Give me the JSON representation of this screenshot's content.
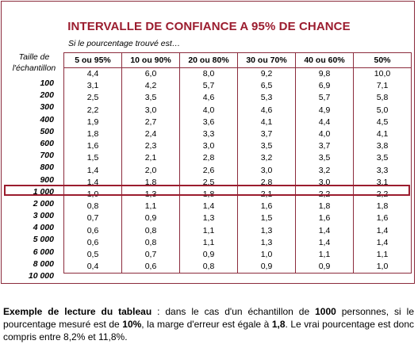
{
  "title": "INTERVALLE DE CONFIANCE A 95% DE CHANCE",
  "subtitle": "Si le pourcentage trouvé est…",
  "row_header": "Taille de l'échantillon",
  "columns": [
    "5 ou 95%",
    "10 ou 90%",
    "20 ou 80%",
    "30 ou 70%",
    "40 ou 60%",
    "50%"
  ],
  "rows": [
    {
      "size": "100",
      "values": [
        "4,4",
        "6,0",
        "8,0",
        "9,2",
        "9,8",
        "10,0"
      ]
    },
    {
      "size": "200",
      "values": [
        "3,1",
        "4,2",
        "5,7",
        "6,5",
        "6,9",
        "7,1"
      ]
    },
    {
      "size": "300",
      "values": [
        "2,5",
        "3,5",
        "4,6",
        "5,3",
        "5,7",
        "5,8"
      ]
    },
    {
      "size": "400",
      "values": [
        "2,2",
        "3,0",
        "4,0",
        "4,6",
        "4,9",
        "5,0"
      ]
    },
    {
      "size": "500",
      "values": [
        "1,9",
        "2,7",
        "3,6",
        "4,1",
        "4,4",
        "4,5"
      ]
    },
    {
      "size": "600",
      "values": [
        "1,8",
        "2,4",
        "3,3",
        "3,7",
        "4,0",
        "4,1"
      ]
    },
    {
      "size": "700",
      "values": [
        "1,6",
        "2,3",
        "3,0",
        "3,5",
        "3,7",
        "3,8"
      ]
    },
    {
      "size": "800",
      "values": [
        "1,5",
        "2,1",
        "2,8",
        "3,2",
        "3,5",
        "3,5"
      ]
    },
    {
      "size": "900",
      "values": [
        "1,4",
        "2,0",
        "2,6",
        "3,0",
        "3,2",
        "3,3"
      ]
    },
    {
      "size": "1 000",
      "values": [
        "1,4",
        "1,8",
        "2,5",
        "2,8",
        "3,0",
        "3,1"
      ]
    },
    {
      "size": "2 000",
      "values": [
        "1,0",
        "1,3",
        "1,8",
        "2,1",
        "2,2",
        "2,2"
      ]
    },
    {
      "size": "3 000",
      "values": [
        "0,8",
        "1,1",
        "1,4",
        "1,6",
        "1,8",
        "1,8"
      ]
    },
    {
      "size": "4 000",
      "values": [
        "0,7",
        "0,9",
        "1,3",
        "1,5",
        "1,6",
        "1,6"
      ]
    },
    {
      "size": "5 000",
      "values": [
        "0,6",
        "0,8",
        "1,1",
        "1,3",
        "1,4",
        "1,4"
      ]
    },
    {
      "size": "6 000",
      "values": [
        "0,6",
        "0,8",
        "1,1",
        "1,3",
        "1,4",
        "1,4"
      ]
    },
    {
      "size": "8 000",
      "values": [
        "0,5",
        "0,7",
        "0,9",
        "1,0",
        "1,1",
        "1,1"
      ]
    },
    {
      "size": "10 000",
      "values": [
        "0,4",
        "0,6",
        "0,8",
        "0,9",
        "0,9",
        "1,0"
      ]
    }
  ],
  "highlight_row": "1 000",
  "note": {
    "lead": "Exemple de lecture du tableau",
    "t1": " : dans le cas d'un échantillon de ",
    "b1": "1000",
    "t2": " personnes, si le pourcentage mesuré est de ",
    "b2": "10%",
    "t3": ", la marge d'erreur est égale à ",
    "b3": "1,8",
    "t4": ". Le vrai pourcentage est donc compris entre 8,2% et 11,8%."
  },
  "colors": {
    "accent": "#9b1c2e",
    "border": "#8b2b3c"
  }
}
